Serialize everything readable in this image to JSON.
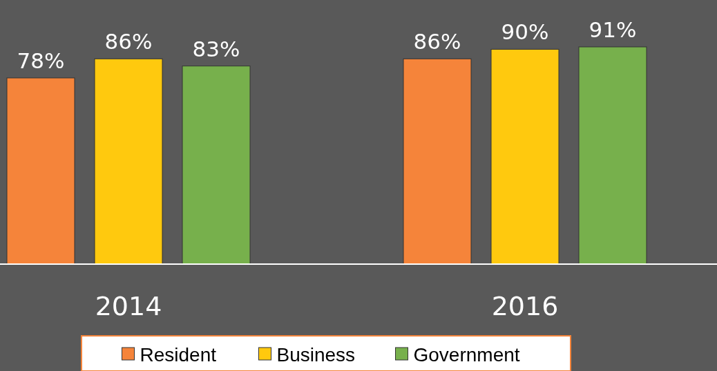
{
  "chart_data": {
    "type": "bar",
    "categories": [
      "2014",
      "2016"
    ],
    "series": [
      {
        "name": "Resident",
        "color": "#f5843a",
        "values": [
          78,
          86
        ],
        "value_labels": [
          "78%",
          "86%"
        ]
      },
      {
        "name": "Business",
        "color": "#ffc90e",
        "values": [
          86,
          90
        ],
        "value_labels": [
          "86%",
          "90%"
        ]
      },
      {
        "name": "Government",
        "color": "#77b04c",
        "values": [
          83,
          91
        ],
        "value_labels": [
          "83%",
          "91%"
        ]
      }
    ],
    "legend": "bottom"
  }
}
